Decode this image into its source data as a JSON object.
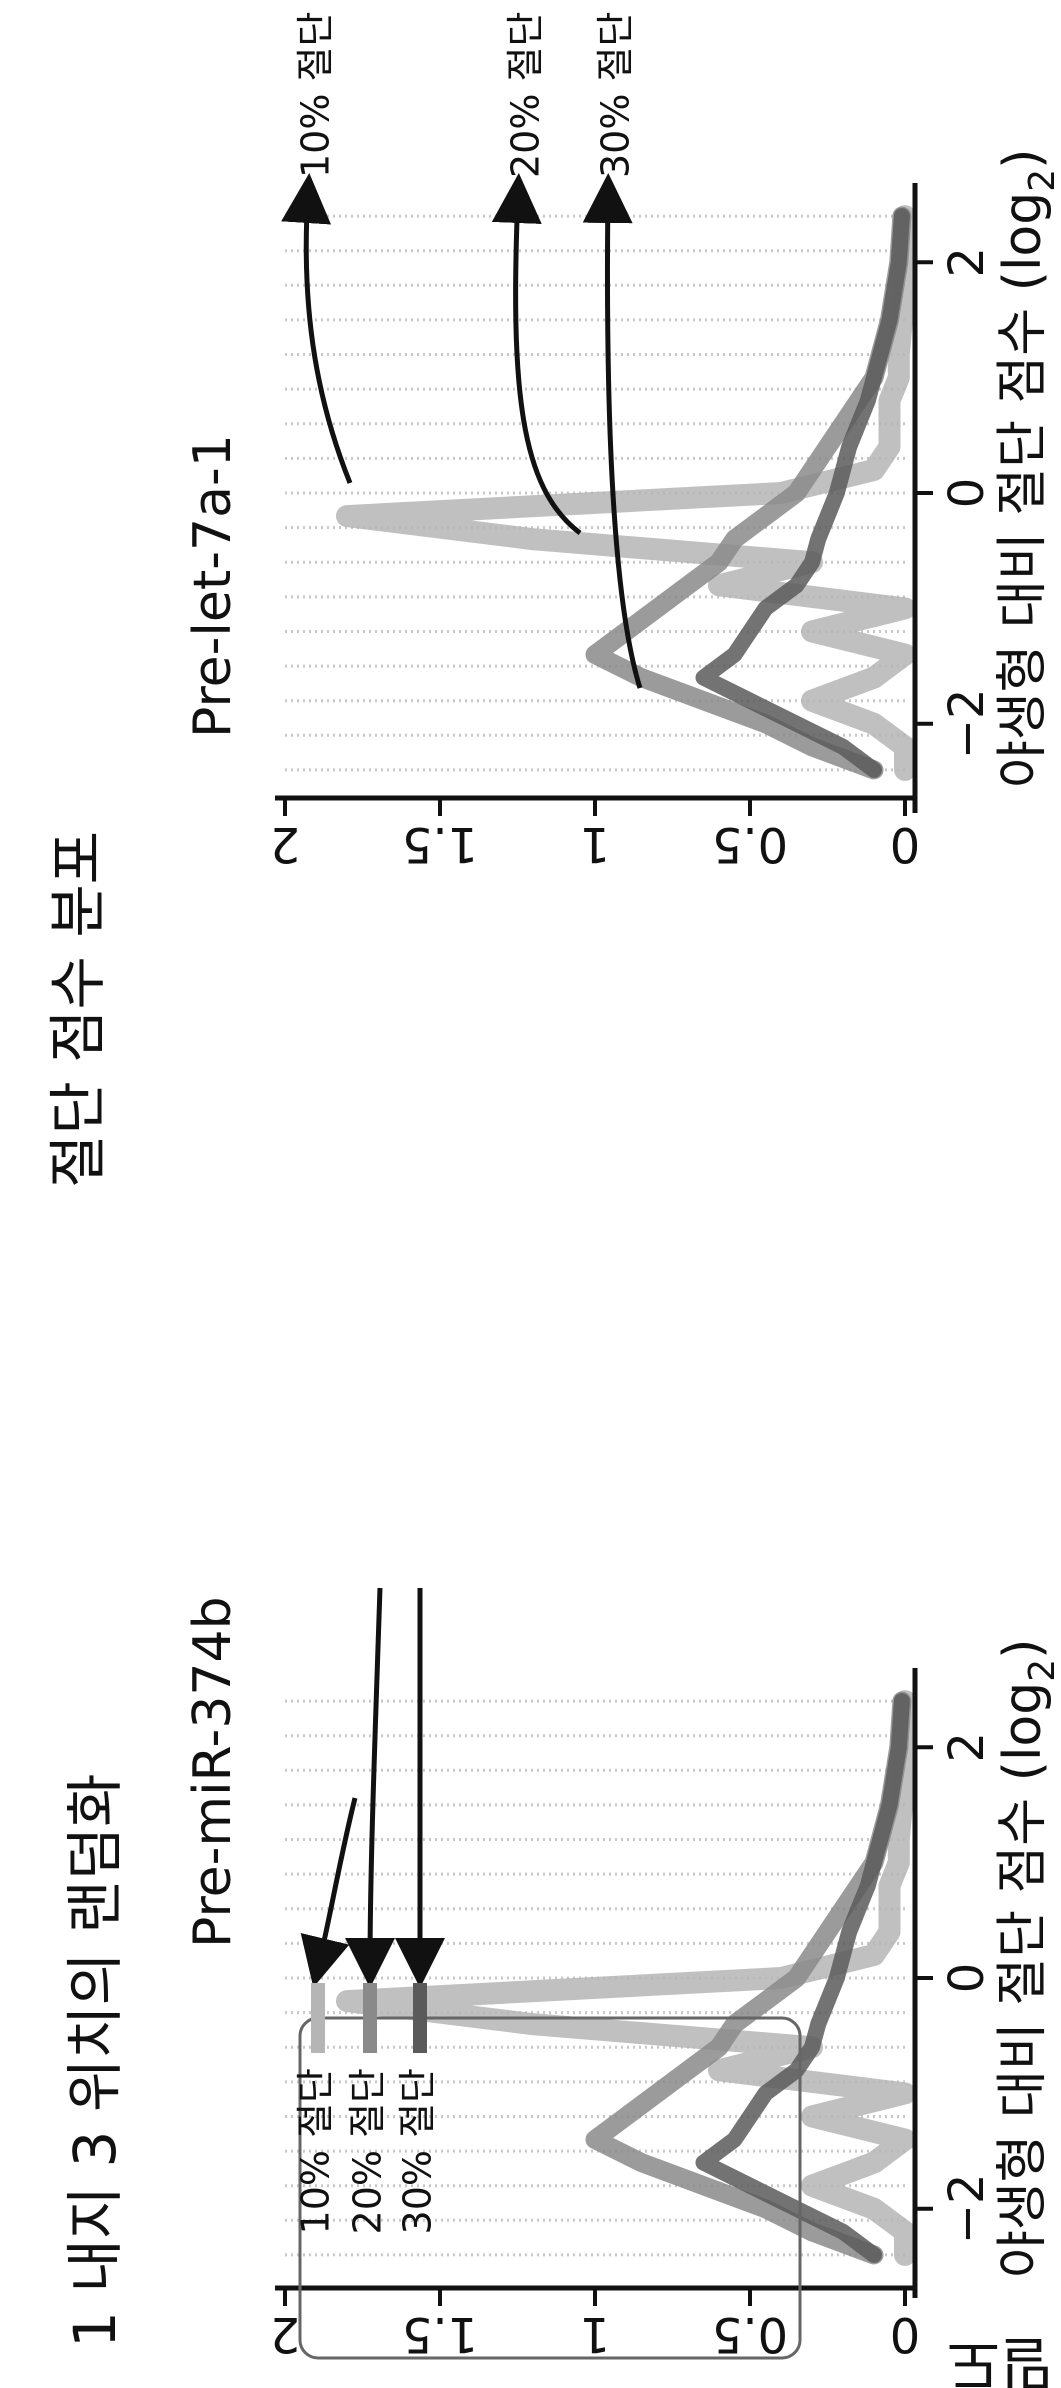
{
  "figure": {
    "title": "절단 점수 분포",
    "subtitle": "1 내지 3 위치의 랜덤화",
    "ylabel": "밀도"
  },
  "chart_data": [
    {
      "type": "line",
      "title": "Pre-let-7a-1",
      "xlabel": "야생형 대비 절단 점수 (log",
      "xlabel_sub": "2",
      "xlabel_close": ")",
      "xlim": [
        -2.6,
        2.6
      ],
      "ylim": [
        0,
        2
      ],
      "xticks": [
        "−2",
        "0",
        "2"
      ],
      "yticks": [
        "0",
        "0.5",
        "1",
        "1.5",
        "2"
      ],
      "legend_placement": "annotations",
      "series": [
        {
          "name": "10% 절단",
          "color": "#b5b5b5",
          "x": [
            -2.4,
            -2.2,
            -2.0,
            -1.8,
            -1.6,
            -1.4,
            -1.2,
            -1.0,
            -0.8,
            -0.6,
            -0.4,
            -0.2,
            0.0,
            0.2,
            0.4,
            0.6,
            0.8,
            1.0,
            1.2,
            1.5,
            2.0,
            2.4
          ],
          "y": [
            0.0,
            0.0,
            0.1,
            0.3,
            0.1,
            0.0,
            0.3,
            0.0,
            0.6,
            0.3,
            1.2,
            1.8,
            0.4,
            0.1,
            0.05,
            0.05,
            0.05,
            0.02,
            0.02,
            0.01,
            0.0,
            0.0
          ]
        },
        {
          "name": "20% 절단",
          "color": "#8a8a8a",
          "x": [
            -2.4,
            -2.2,
            -2.0,
            -1.8,
            -1.6,
            -1.4,
            -1.2,
            -1.0,
            -0.8,
            -0.6,
            -0.4,
            -0.2,
            0.0,
            0.2,
            0.4,
            0.6,
            0.8,
            1.0,
            1.2,
            1.5,
            2.0,
            2.4
          ],
          "y": [
            0.1,
            0.3,
            0.45,
            0.65,
            0.85,
            1.0,
            0.9,
            0.8,
            0.7,
            0.6,
            0.55,
            0.45,
            0.35,
            0.3,
            0.25,
            0.2,
            0.15,
            0.1,
            0.08,
            0.05,
            0.02,
            0.01
          ]
        },
        {
          "name": "30% 절단",
          "color": "#5a5a5a",
          "x": [
            -2.4,
            -2.2,
            -2.0,
            -1.8,
            -1.6,
            -1.4,
            -1.2,
            -1.0,
            -0.8,
            -0.6,
            -0.4,
            -0.2,
            0.0,
            0.2,
            0.4,
            0.6,
            0.8,
            1.0,
            1.2,
            1.5,
            2.0,
            2.4
          ],
          "y": [
            0.1,
            0.2,
            0.35,
            0.5,
            0.65,
            0.55,
            0.5,
            0.45,
            0.35,
            0.3,
            0.28,
            0.25,
            0.22,
            0.2,
            0.18,
            0.15,
            0.12,
            0.1,
            0.08,
            0.05,
            0.02,
            0.01
          ]
        }
      ]
    },
    {
      "type": "line",
      "title": "Pre-miR-374b",
      "xlabel": "야생형 대비 절단 점수 (log",
      "xlabel_sub": "2",
      "xlabel_close": ")",
      "xlim": [
        -2.6,
        2.6
      ],
      "ylim": [
        0,
        2
      ],
      "xticks": [
        "−2",
        "0",
        "2"
      ],
      "yticks": [
        "0",
        "0.5",
        "1",
        "1.5",
        "2"
      ],
      "legend_placement": "right",
      "series": [
        {
          "name": "10% 절단",
          "color": "#b5b5b5",
          "x": [
            -2.4,
            -2.2,
            -2.0,
            -1.8,
            -1.6,
            -1.4,
            -1.2,
            -1.0,
            -0.8,
            -0.6,
            -0.4,
            -0.2,
            0.0,
            0.2,
            0.4,
            0.6,
            0.8,
            1.0,
            1.2,
            1.5,
            2.0,
            2.4
          ],
          "y": [
            0.0,
            0.0,
            0.1,
            0.3,
            0.1,
            0.0,
            0.3,
            0.0,
            0.6,
            0.3,
            1.2,
            1.8,
            0.4,
            0.1,
            0.05,
            0.05,
            0.05,
            0.02,
            0.02,
            0.01,
            0.0,
            0.0
          ]
        },
        {
          "name": "20% 절단",
          "color": "#8a8a8a",
          "x": [
            -2.4,
            -2.2,
            -2.0,
            -1.8,
            -1.6,
            -1.4,
            -1.2,
            -1.0,
            -0.8,
            -0.6,
            -0.4,
            -0.2,
            0.0,
            0.2,
            0.4,
            0.6,
            0.8,
            1.0,
            1.2,
            1.5,
            2.0,
            2.4
          ],
          "y": [
            0.1,
            0.3,
            0.45,
            0.65,
            0.85,
            1.0,
            0.9,
            0.8,
            0.7,
            0.6,
            0.55,
            0.45,
            0.35,
            0.3,
            0.25,
            0.2,
            0.15,
            0.1,
            0.08,
            0.05,
            0.02,
            0.01
          ]
        },
        {
          "name": "30% 절단",
          "color": "#5a5a5a",
          "x": [
            -2.4,
            -2.2,
            -2.0,
            -1.8,
            -1.6,
            -1.4,
            -1.2,
            -1.0,
            -0.8,
            -0.6,
            -0.4,
            -0.2,
            0.0,
            0.2,
            0.4,
            0.6,
            0.8,
            1.0,
            1.2,
            1.5,
            2.0,
            2.4
          ],
          "y": [
            0.1,
            0.2,
            0.35,
            0.5,
            0.65,
            0.55,
            0.5,
            0.45,
            0.35,
            0.3,
            0.28,
            0.25,
            0.22,
            0.2,
            0.18,
            0.15,
            0.12,
            0.1,
            0.08,
            0.05,
            0.02,
            0.01
          ]
        }
      ]
    }
  ]
}
